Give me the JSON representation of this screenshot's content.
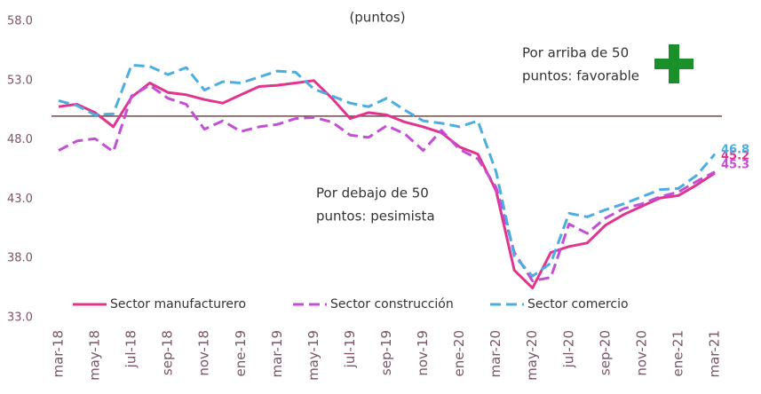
{
  "chart_data": {
    "type": "line",
    "title": "(puntos)",
    "categories": [
      "mar-18",
      null,
      "may-18",
      null,
      "jul-18",
      null,
      "sep-18",
      null,
      "nov-18",
      null,
      "ene-19",
      null,
      "mar-19",
      null,
      "may-19",
      null,
      "jul-19",
      null,
      "sep-19",
      null,
      "nov-19",
      null,
      "ene-20",
      null,
      "mar-20",
      null,
      "may-20",
      null,
      "jul-20",
      null,
      "sep-20",
      null,
      "nov-20",
      null,
      "ene-21",
      null,
      "mar-21"
    ],
    "series": [
      {
        "name": "Sector manufacturero",
        "color": "#e0348f",
        "dashed": false,
        "values": [
          50.8,
          51.0,
          50.3,
          49.1,
          51.6,
          52.8,
          52.0,
          51.8,
          51.4,
          51.1,
          51.8,
          52.5,
          52.6,
          52.8,
          53.0,
          51.5,
          49.8,
          50.3,
          50.1,
          49.5,
          49.1,
          48.6,
          47.4,
          46.8,
          43.7,
          37.0,
          35.5,
          38.5,
          39.0,
          39.3,
          40.8,
          41.7,
          42.4,
          43.1,
          43.3,
          44.2,
          45.2
        ]
      },
      {
        "name": "Sector construcción",
        "color": "#c24fd4",
        "dashed": true,
        "values": [
          47.1,
          47.9,
          48.1,
          47.0,
          51.7,
          52.6,
          51.5,
          51.0,
          48.9,
          49.6,
          48.7,
          49.1,
          49.3,
          49.8,
          49.9,
          49.5,
          48.4,
          48.2,
          49.2,
          48.5,
          47.1,
          48.8,
          47.2,
          46.4,
          44.0,
          38.5,
          36.1,
          36.4,
          40.9,
          40.1,
          41.4,
          42.2,
          42.6,
          43.2,
          43.6,
          44.5,
          45.3
        ]
      },
      {
        "name": "Sector comercio",
        "color": "#4aaee0",
        "dashed": true,
        "values": [
          51.3,
          50.9,
          50.1,
          50.2,
          54.3,
          54.2,
          53.5,
          54.1,
          52.2,
          52.9,
          52.8,
          53.3,
          53.8,
          53.7,
          52.3,
          51.7,
          51.1,
          50.8,
          51.5,
          50.5,
          49.6,
          49.4,
          49.1,
          49.6,
          45.3,
          38.2,
          36.5,
          37.6,
          41.8,
          41.5,
          42.1,
          42.6,
          43.2,
          43.8,
          43.9,
          45.0,
          46.8
        ]
      }
    ],
    "ylim": [
      33,
      58
    ],
    "yticks": [
      {
        "value": 33,
        "label": "33.0"
      },
      {
        "value": 38,
        "label": "38.0"
      },
      {
        "value": 43,
        "label": "43.0"
      },
      {
        "value": 48,
        "label": "48.0"
      },
      {
        "value": 53,
        "label": "53.0"
      },
      {
        "value": 58,
        "label": "58.0"
      }
    ],
    "reference_line": 50,
    "annotations": [
      [
        "Por arriba de 50",
        "puntos: favorable"
      ],
      [
        "Por debajo de 50",
        "puntos: pesimista"
      ]
    ]
  }
}
